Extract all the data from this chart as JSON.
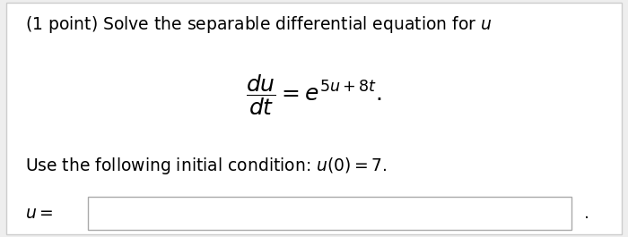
{
  "background_color": "#eeeeee",
  "inner_background": "#ffffff",
  "title_text": "(1 point) Solve the separable differential equation for $u$",
  "initial_condition": "Use the following initial condition: $u(0) = 7.$",
  "answer_label": "$u =$",
  "title_fontsize": 13.5,
  "eq_fontsize": 18,
  "ic_fontsize": 13.5,
  "answer_fontsize": 13.5
}
